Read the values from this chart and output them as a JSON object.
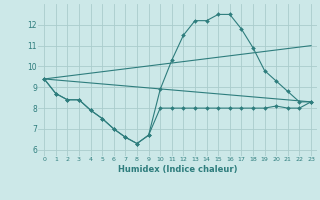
{
  "title": "",
  "xlabel": "Humidex (Indice chaleur)",
  "ylabel": "",
  "bg_color": "#cce8e8",
  "line_color": "#2e7d7d",
  "grid_color": "#aacccc",
  "xlim": [
    -0.5,
    23.5
  ],
  "ylim": [
    5.7,
    13.0
  ],
  "yticks": [
    6,
    7,
    8,
    9,
    10,
    11,
    12
  ],
  "xticks": [
    0,
    1,
    2,
    3,
    4,
    5,
    6,
    7,
    8,
    9,
    10,
    11,
    12,
    13,
    14,
    15,
    16,
    17,
    18,
    19,
    20,
    21,
    22,
    23
  ],
  "series": [
    {
      "x": [
        0,
        1,
        2,
        3,
        4,
        5,
        6,
        7,
        8,
        9,
        10,
        11,
        12,
        13,
        14,
        15,
        16,
        17,
        18,
        19,
        20,
        21,
        22,
        23
      ],
      "y": [
        9.4,
        8.7,
        8.4,
        8.4,
        7.9,
        7.5,
        7.0,
        6.6,
        6.3,
        6.7,
        8.0,
        8.0,
        8.0,
        8.0,
        8.0,
        8.0,
        8.0,
        8.0,
        8.0,
        8.0,
        8.1,
        8.0,
        8.0,
        8.3
      ],
      "marker": "D",
      "markersize": 2.0
    },
    {
      "x": [
        0,
        1,
        2,
        3,
        4,
        5,
        6,
        7,
        8,
        9,
        10,
        11,
        12,
        13,
        14,
        15,
        16,
        17,
        18,
        19,
        20,
        21,
        22,
        23
      ],
      "y": [
        9.4,
        8.7,
        8.4,
        8.4,
        7.9,
        7.5,
        7.0,
        6.6,
        6.3,
        6.7,
        8.9,
        10.3,
        11.5,
        12.2,
        12.2,
        12.5,
        12.5,
        11.8,
        10.9,
        9.8,
        9.3,
        8.8,
        8.3,
        8.3
      ],
      "marker": "D",
      "markersize": 2.0
    },
    {
      "x": [
        0,
        23
      ],
      "y": [
        9.4,
        11.0
      ],
      "marker": null,
      "markersize": 0
    },
    {
      "x": [
        0,
        23
      ],
      "y": [
        9.4,
        8.3
      ],
      "marker": null,
      "markersize": 0
    }
  ]
}
